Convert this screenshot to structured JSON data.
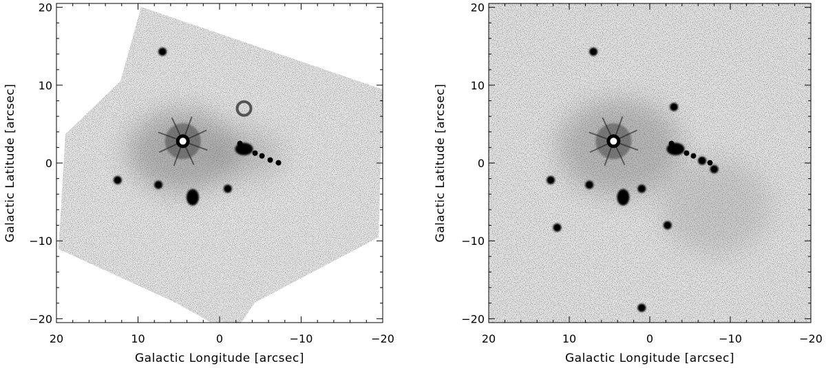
{
  "chart_data": [
    {
      "type": "heatmap",
      "xlabel": "Galactic Longitude [arcsec]",
      "ylabel": "Galactic Latitude [arcsec]",
      "xlim": [
        20,
        -20
      ],
      "ylim": [
        -20.5,
        20.5
      ],
      "x_ticks": [
        20,
        10,
        0,
        -10,
        -20
      ],
      "y_ticks": [
        20,
        10,
        0,
        -10,
        -20
      ],
      "x_tick_labels": [
        "20",
        "10",
        "0",
        "−10",
        "−20"
      ],
      "y_tick_labels": [
        "20",
        "10",
        "0",
        "−10",
        "−20"
      ],
      "colormap": "inverted grayscale",
      "sources": [
        {
          "x": 4.5,
          "y": 2.8,
          "type": "bright-star"
        },
        {
          "x": -3.0,
          "y": 1.8,
          "type": "cluster"
        },
        {
          "x": 3.3,
          "y": -4.4,
          "type": "blob"
        },
        {
          "x": 7.5,
          "y": -2.8,
          "type": "point"
        },
        {
          "x": 12.5,
          "y": -2.2,
          "type": "point"
        },
        {
          "x": -1.0,
          "y": -3.3,
          "type": "point"
        },
        {
          "x": -3.0,
          "y": 7.0,
          "type": "ring"
        },
        {
          "x": 7.0,
          "y": 14.3,
          "type": "point"
        }
      ]
    },
    {
      "type": "heatmap",
      "xlabel": "Galactic Longitude [arcsec]",
      "ylabel": "Galactic Latitude [arcsec]",
      "xlim": [
        20,
        -20
      ],
      "ylim": [
        -20.5,
        20.5
      ],
      "x_ticks": [
        20,
        10,
        0,
        -10,
        -20
      ],
      "y_ticks": [
        20,
        10,
        0,
        -10,
        -20
      ],
      "x_tick_labels": [
        "20",
        "10",
        "0",
        "−10",
        "−20"
      ],
      "y_tick_labels": [
        "20",
        "10",
        "0",
        "−10",
        "−20"
      ],
      "colormap": "inverted grayscale",
      "sources": [
        {
          "x": 4.5,
          "y": 2.8,
          "type": "bright-star"
        },
        {
          "x": -3.2,
          "y": 1.8,
          "type": "cluster"
        },
        {
          "x": 3.3,
          "y": -4.4,
          "type": "blob"
        },
        {
          "x": 7.5,
          "y": -2.8,
          "type": "point"
        },
        {
          "x": 12.3,
          "y": -2.2,
          "type": "point"
        },
        {
          "x": 11.5,
          "y": -8.3,
          "type": "point"
        },
        {
          "x": -2.2,
          "y": -8.0,
          "type": "point"
        },
        {
          "x": 1.0,
          "y": -3.3,
          "type": "point"
        },
        {
          "x": -3.0,
          "y": 7.2,
          "type": "point"
        },
        {
          "x": 7.0,
          "y": 14.3,
          "type": "point"
        },
        {
          "x": 1.0,
          "y": -18.6,
          "type": "point"
        },
        {
          "x": -6.5,
          "y": 0.3,
          "type": "point"
        },
        {
          "x": -8.0,
          "y": -0.8,
          "type": "point"
        }
      ]
    }
  ]
}
